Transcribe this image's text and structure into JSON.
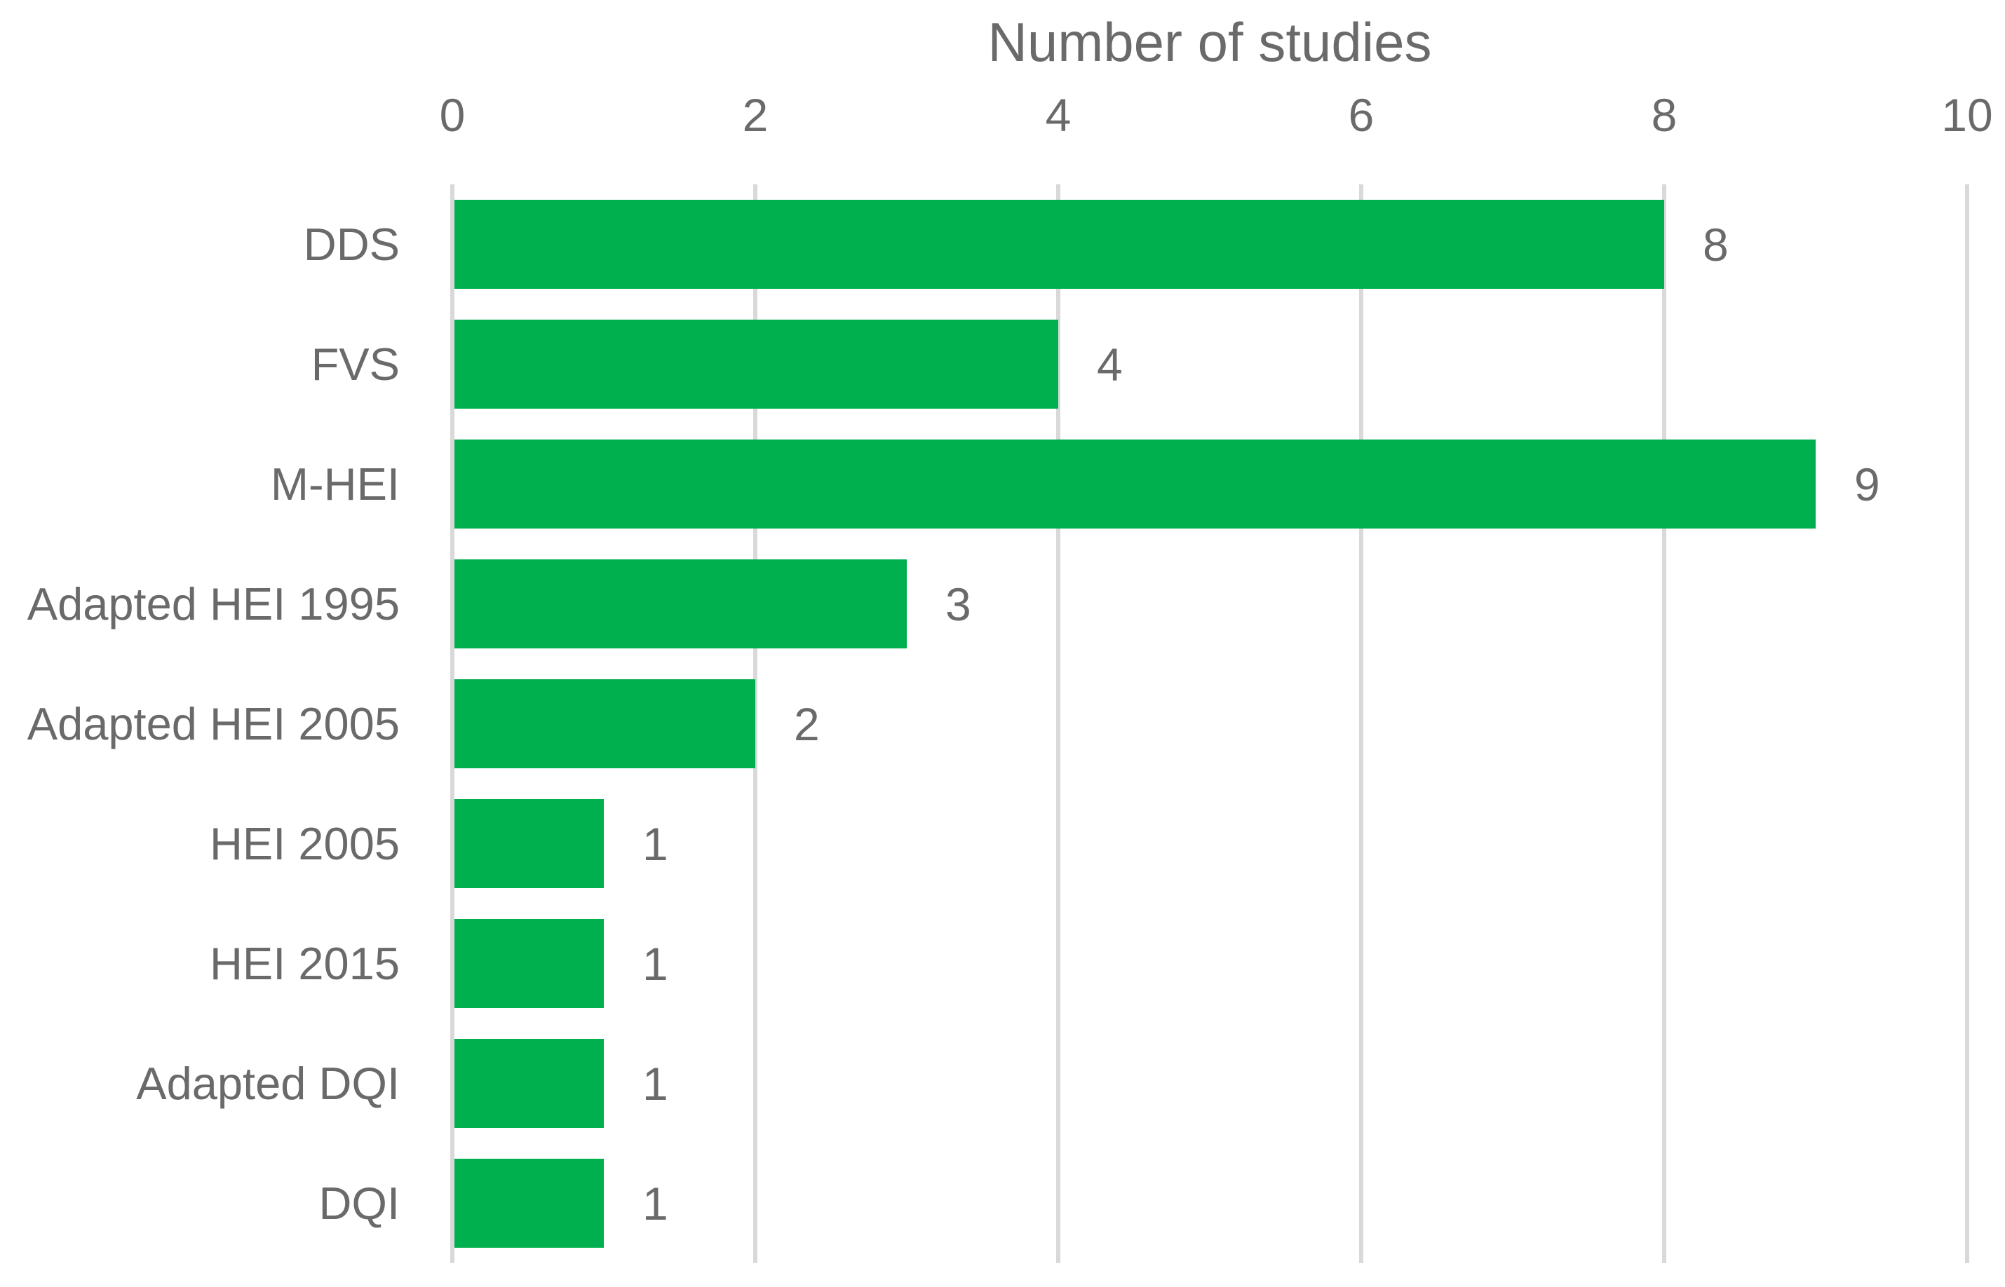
{
  "chart_data": {
    "type": "bar",
    "orientation": "horizontal",
    "title": "Number of studies",
    "categories": [
      "DDS",
      "FVS",
      "M-HEI",
      "Adapted HEI 1995",
      "Adapted HEI 2005",
      "HEI 2005",
      "HEI 2015",
      "Adapted DQI",
      "DQI"
    ],
    "values": [
      8,
      4,
      9,
      3,
      2,
      1,
      1,
      1,
      1
    ],
    "x_ticks": [
      0,
      2,
      4,
      6,
      8,
      10
    ],
    "xlim": [
      0,
      10
    ],
    "xlabel": "Number of studies",
    "grid": true,
    "legend": false,
    "data_labels": true,
    "colors": {
      "bar": "#00B04F",
      "text": "#6A6A6A",
      "gridline": "#D9D9D9"
    }
  }
}
